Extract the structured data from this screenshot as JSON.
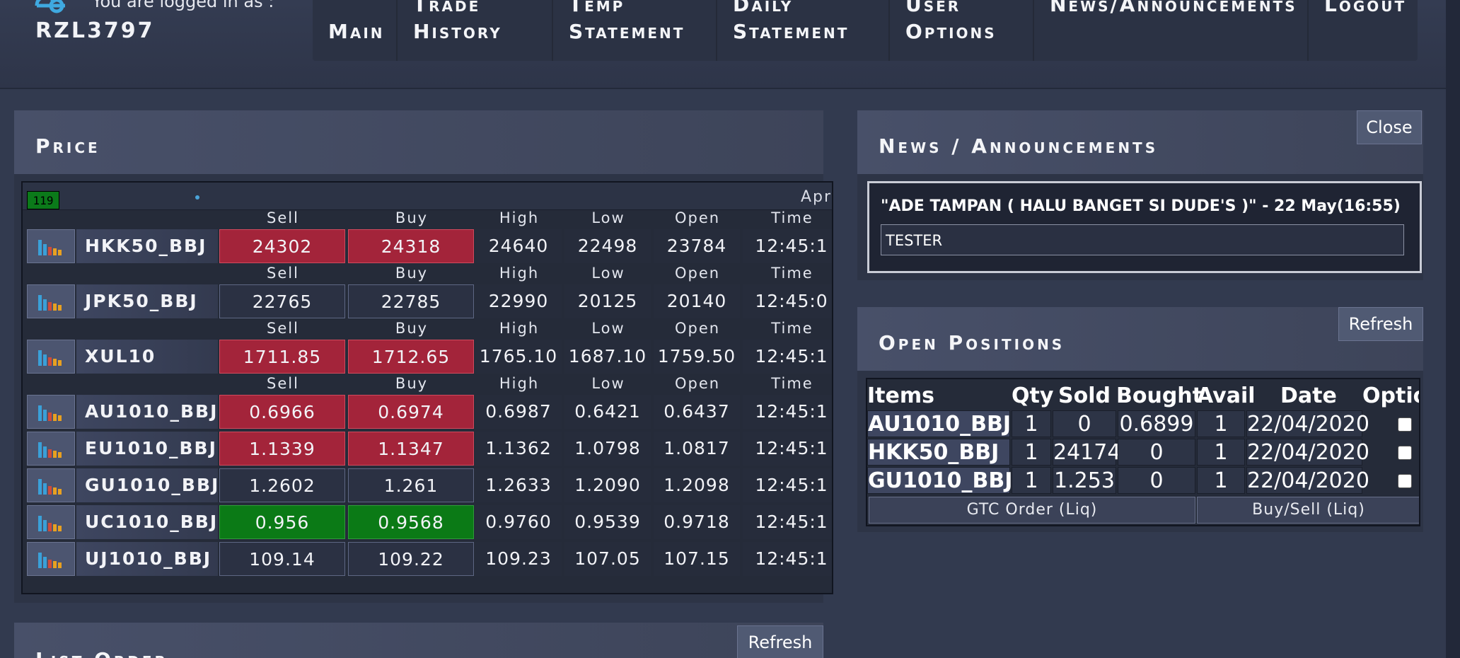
{
  "header": {
    "logged_in_label": "You are logged in as :",
    "username": "RZL3797",
    "nav": [
      {
        "line1": "Main",
        "line2": ""
      },
      {
        "line1": "Trade",
        "line2": "History"
      },
      {
        "line1": "Temp",
        "line2": "Statement"
      },
      {
        "line1": "Daily",
        "line2": "Statement"
      },
      {
        "line1": "User",
        "line2": "Options"
      },
      {
        "line1": "News/Announcements",
        "line2": ""
      },
      {
        "line1": "Logout",
        "line2": ""
      }
    ]
  },
  "price": {
    "title": "Price",
    "counter": "119",
    "ticker_text": "Apr",
    "col_headers": {
      "sell": "Sell",
      "buy": "Buy",
      "high": "High",
      "low": "Low",
      "open": "Open",
      "time": "Time"
    },
    "rows": [
      {
        "symbol": "HKK50_BBJ",
        "sell": "24302",
        "buy": "24318",
        "high": "24640",
        "low": "22498",
        "open": "23784",
        "time": "12:45:1",
        "state": "red",
        "header": true
      },
      {
        "symbol": "JPK50_BBJ",
        "sell": "22765",
        "buy": "22785",
        "high": "22990",
        "low": "20125",
        "open": "20140",
        "time": "12:45:0",
        "state": "none",
        "header": true
      },
      {
        "symbol": "XUL10",
        "sell": "1711.85",
        "buy": "1712.65",
        "high": "1765.10",
        "low": "1687.10",
        "open": "1759.50",
        "time": "12:45:1",
        "state": "red",
        "header": true
      },
      {
        "symbol": "AU1010_BBJ",
        "sell": "0.6966",
        "buy": "0.6974",
        "high": "0.6987",
        "low": "0.6421",
        "open": "0.6437",
        "time": "12:45:1",
        "state": "red",
        "header": true
      },
      {
        "symbol": "EU1010_BBJ",
        "sell": "1.1339",
        "buy": "1.1347",
        "high": "1.1362",
        "low": "1.0798",
        "open": "1.0817",
        "time": "12:45:1",
        "state": "red",
        "header": false
      },
      {
        "symbol": "GU1010_BBJ",
        "sell": "1.2602",
        "buy": "1.261",
        "high": "1.2633",
        "low": "1.2090",
        "open": "1.2098",
        "time": "12:45:1",
        "state": "none",
        "header": false
      },
      {
        "symbol": "UC1010_BBJ",
        "sell": "0.956",
        "buy": "0.9568",
        "high": "0.9760",
        "low": "0.9539",
        "open": "0.9718",
        "time": "12:45:1",
        "state": "green",
        "header": false
      },
      {
        "symbol": "UJ1010_BBJ",
        "sell": "109.14",
        "buy": "109.22",
        "high": "109.23",
        "low": "107.05",
        "open": "107.15",
        "time": "12:45:1",
        "state": "none",
        "header": false
      }
    ]
  },
  "list_order": {
    "title": "List Order",
    "refresh_label": "Refresh"
  },
  "news": {
    "title": "News / Announcements",
    "close_label": "Close",
    "headline": "\"ADE TAMPAN ( HALU BANGET SI DUDE'S )\" - 22 May(16:55)",
    "body": "TESTER"
  },
  "positions": {
    "title": "Open Positions",
    "refresh_label": "Refresh",
    "columns": [
      "Items",
      "Qty",
      "Sold",
      "Bought",
      "Avail",
      "Date",
      "Optio"
    ],
    "rows": [
      {
        "item": "AU1010_BBJ",
        "qty": "1",
        "sold": "0",
        "bought": "0.6899",
        "avail": "1",
        "date": "22/04/2020"
      },
      {
        "item": "HKK50_BBJ",
        "qty": "1",
        "sold": "24174",
        "bought": "0",
        "avail": "1",
        "date": "22/04/2020"
      },
      {
        "item": "GU1010_BBJ",
        "qty": "1",
        "sold": "1.253",
        "bought": "0",
        "avail": "1",
        "date": "22/04/2020"
      }
    ],
    "gtc_label": "GTC Order (Liq)",
    "buysell_label": "Buy/Sell (Liq)"
  },
  "colors": {
    "accent_red": "#a3243a",
    "accent_green": "#0b7a16",
    "background": "#323a4f"
  },
  "icons": {
    "row_chart": "bar-chart-icon",
    "logo": "cloud-link-logo-icon"
  }
}
